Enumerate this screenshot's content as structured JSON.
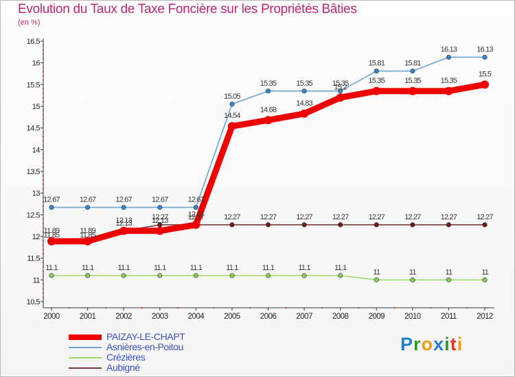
{
  "header": {
    "title": "Evolution du Taux de Taxe Foncière sur les Propriétés Bâties",
    "subtitle": "(en %)"
  },
  "logo": {
    "text": "Proxiti"
  },
  "chart_data": {
    "type": "line",
    "title": "Evolution du Taux de Taxe Foncière sur les Propriétés Bâties",
    "ylabel": "(en %)",
    "xlabel": "",
    "ylim": [
      10.5,
      16.5
    ],
    "yticks": [
      10.5,
      11,
      11.5,
      12,
      12.5,
      13,
      13.5,
      14,
      14.5,
      15,
      15.5,
      16,
      16.5
    ],
    "ytick_labels": [
      "10.5",
      "11",
      "11.5",
      "12",
      "12.5",
      "13",
      "13.5",
      "14",
      "14.5",
      "15",
      "15.5",
      "16",
      "16.5"
    ],
    "categories": [
      "2000",
      "2001",
      "2002",
      "2003",
      "2004",
      "2005",
      "2006",
      "2007",
      "2008",
      "2009",
      "2010",
      "2011",
      "2012"
    ],
    "grid": false,
    "legend_position": "bottom-left",
    "series": [
      {
        "name": "Asnières-en-Poitou",
        "color": "#6aa3d6",
        "marker_color": "#3b82c4",
        "values": [
          12.67,
          12.67,
          12.67,
          12.67,
          12.67,
          15.05,
          15.35,
          15.35,
          15.35,
          15.81,
          15.81,
          16.13,
          16.13
        ],
        "labels": [
          "12.67",
          "12.67",
          "12.67",
          "12.67",
          "12.67",
          "15.05",
          "15.35",
          "15.35",
          "15.35",
          "15.81",
          "15.81",
          "16.13",
          "16.13"
        ]
      },
      {
        "name": "Crézières",
        "color": "#9ed86a",
        "marker_color": "#86c94e",
        "values": [
          11.1,
          11.1,
          11.1,
          11.1,
          11.1,
          11.1,
          11.1,
          11.1,
          11.1,
          11,
          11,
          11,
          11
        ],
        "labels": [
          "11.1",
          "11.1",
          "11.1",
          "11.1",
          "11.1",
          "11.1",
          "11.1",
          "11.1",
          "11.1",
          "11",
          "11",
          "11",
          "11"
        ]
      },
      {
        "name": "Aubigné",
        "color": "#7a3a3a",
        "marker_color": "#6b1a1a",
        "values": [
          11.85,
          11.85,
          12.13,
          12.27,
          12.27,
          12.27,
          12.27,
          12.27,
          12.27,
          12.27,
          12.27,
          12.27,
          12.27
        ],
        "labels": [
          "11.85",
          "11.85",
          "12.13",
          "12.27",
          "12.27",
          "12.27",
          "12.27",
          "12.27",
          "12.27",
          "12.27",
          "12.27",
          "12.27",
          "12.27"
        ]
      },
      {
        "name": "PAIZAY-LE-CHAPT",
        "color": "#ee0000",
        "marker_color": "#ee0000",
        "values": [
          11.89,
          11.89,
          12.13,
          12.13,
          12.27,
          14.54,
          14.68,
          14.83,
          15.2,
          15.35,
          15.35,
          15.35,
          15.5
        ],
        "labels": [
          "11.89",
          "11.89",
          "12.13",
          "12.13",
          "12.27",
          "14.54",
          "14.68",
          "14.83",
          "15.2",
          "15.35",
          "15.35",
          "15.35",
          "15.5"
        ]
      }
    ],
    "legend": [
      {
        "name": "PAIZAY-LE-CHAPT",
        "color": "#ee0000"
      },
      {
        "name": "Asnières-en-Poitou",
        "color": "#6aa3d6"
      },
      {
        "name": "Crézières",
        "color": "#9ed86a"
      },
      {
        "name": "Aubigné",
        "color": "#7a3a3a"
      }
    ]
  }
}
